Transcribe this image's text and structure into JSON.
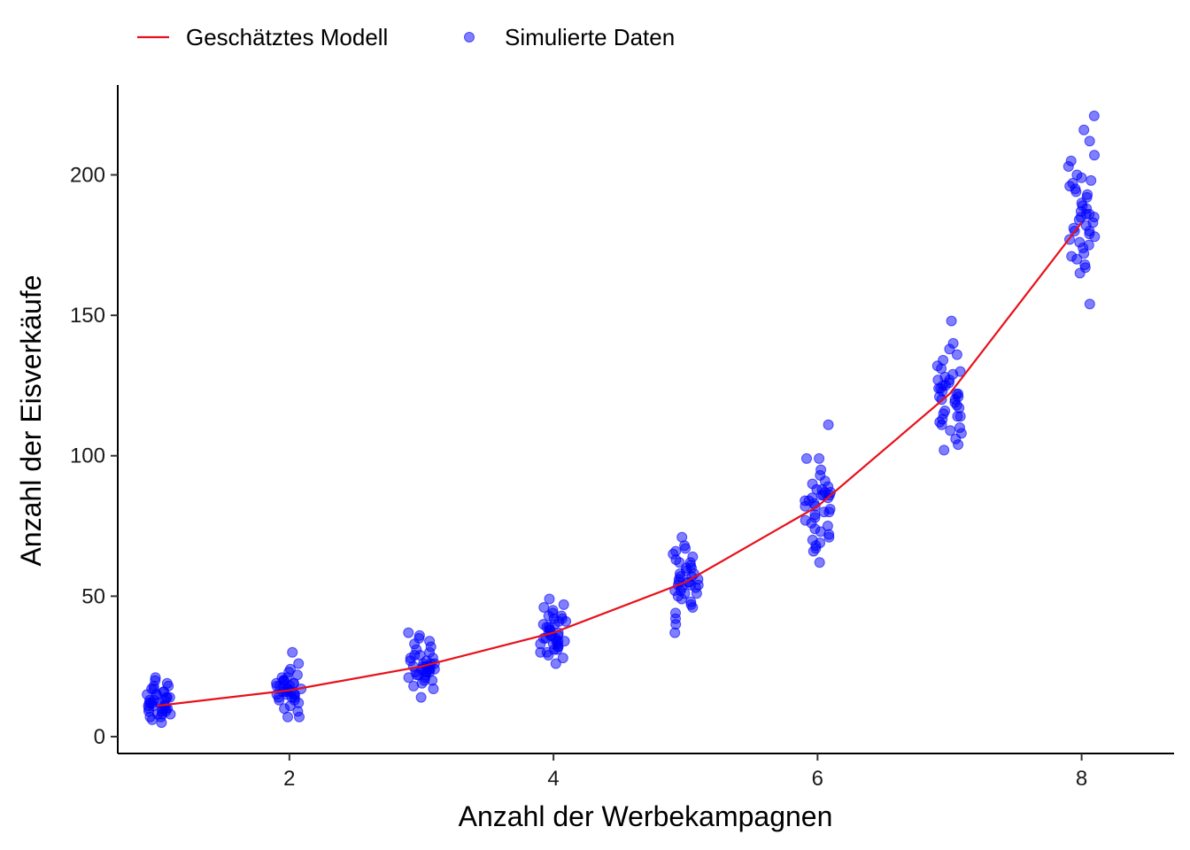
{
  "chart_data": {
    "type": "scatter",
    "xlabel": "Anzahl der Werbekampagnen",
    "ylabel": "Anzahl der Eisverkäufe",
    "xlim": [
      0.7,
      8.7
    ],
    "ylim": [
      -6,
      232
    ],
    "x_ticks": [
      2,
      4,
      6,
      8
    ],
    "y_ticks": [
      0,
      50,
      100,
      150,
      200
    ],
    "grid": false,
    "legend_position": "top-left",
    "legend": [
      {
        "label": "Geschätztes Modell",
        "kind": "line",
        "color": "#e8101a"
      },
      {
        "label": "Simulierte Daten",
        "kind": "point",
        "color": "#0000ff"
      }
    ],
    "series": [
      {
        "name": "Geschätztes Modell",
        "kind": "line",
        "color": "#e8101a",
        "x": [
          1,
          2,
          3,
          4,
          5,
          6,
          7,
          8
        ],
        "y": [
          11,
          16.5,
          25,
          37,
          55,
          82,
          122,
          183
        ]
      },
      {
        "name": "Simulierte Daten",
        "kind": "point",
        "color": "#0000ff",
        "groups": [
          {
            "x": 1,
            "y": [
              5,
              6,
              7,
              8,
              8,
              9,
              9,
              10,
              10,
              10,
              11,
              11,
              11,
              12,
              12,
              12,
              13,
              13,
              14,
              14,
              15,
              15,
              16,
              17,
              17,
              18,
              18,
              19,
              20,
              21,
              9,
              10,
              11,
              12,
              13,
              8,
              14,
              15,
              16,
              7
            ]
          },
          {
            "x": 2,
            "y": [
              7,
              7,
              9,
              10,
              11,
              12,
              13,
              13,
              14,
              14,
              15,
              15,
              15,
              16,
              16,
              16,
              17,
              17,
              17,
              18,
              18,
              18,
              19,
              19,
              20,
              20,
              21,
              21,
              22,
              23,
              24,
              26,
              30,
              14,
              15,
              16,
              17,
              18,
              19,
              20
            ]
          },
          {
            "x": 3,
            "y": [
              14,
              17,
              18,
              19,
              20,
              20,
              21,
              21,
              22,
              22,
              23,
              23,
              23,
              24,
              24,
              24,
              25,
              25,
              25,
              26,
              26,
              27,
              27,
              28,
              28,
              29,
              29,
              30,
              31,
              32,
              33,
              34,
              35,
              36,
              37,
              22,
              23,
              24,
              25,
              26
            ]
          },
          {
            "x": 4,
            "y": [
              26,
              28,
              29,
              30,
              30,
              31,
              31,
              32,
              32,
              33,
              33,
              34,
              34,
              35,
              35,
              35,
              36,
              36,
              37,
              37,
              38,
              38,
              39,
              39,
              40,
              40,
              41,
              41,
              42,
              42,
              43,
              43,
              44,
              45,
              46,
              47,
              49,
              33,
              34,
              36
            ]
          },
          {
            "x": 5,
            "y": [
              37,
              40,
              42,
              44,
              46,
              47,
              48,
              49,
              50,
              51,
              51,
              52,
              52,
              53,
              53,
              54,
              54,
              55,
              55,
              56,
              56,
              57,
              57,
              58,
              58,
              59,
              60,
              60,
              61,
              62,
              62,
              63,
              64,
              65,
              66,
              67,
              68,
              71,
              54,
              55
            ]
          },
          {
            "x": 6,
            "y": [
              62,
              66,
              67,
              68,
              69,
              70,
              71,
              72,
              73,
              74,
              75,
              76,
              77,
              78,
              79,
              80,
              81,
              82,
              82,
              83,
              84,
              85,
              85,
              86,
              86,
              87,
              87,
              88,
              88,
              89,
              90,
              91,
              93,
              95,
              99,
              99,
              111,
              80,
              84,
              86
            ]
          },
          {
            "x": 7,
            "y": [
              102,
              104,
              106,
              108,
              109,
              110,
              111,
              112,
              113,
              114,
              114,
              115,
              116,
              117,
              118,
              119,
              120,
              120,
              121,
              122,
              122,
              123,
              124,
              124,
              125,
              125,
              126,
              127,
              127,
              128,
              129,
              130,
              131,
              132,
              134,
              136,
              138,
              140,
              148,
              121
            ]
          },
          {
            "x": 8,
            "y": [
              154,
              165,
              167,
              168,
              170,
              171,
              172,
              174,
              175,
              176,
              177,
              178,
              179,
              180,
              180,
              181,
              182,
              183,
              184,
              185,
              185,
              186,
              187,
              188,
              189,
              190,
              192,
              193,
              194,
              195,
              196,
              197,
              198,
              199,
              200,
              203,
              205,
              207,
              212,
              216,
              221,
              186
            ]
          }
        ]
      }
    ]
  }
}
